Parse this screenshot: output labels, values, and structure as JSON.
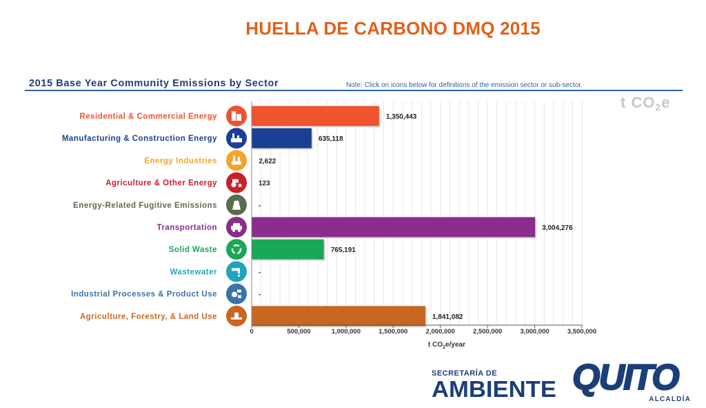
{
  "slide": {
    "title": "HUELLA DE CARBONO DMQ 2015"
  },
  "header": {
    "chart_title": "2015 Base Year Community Emissions by Sector",
    "note": "Note: Click on icons below for definitions of the emission sector or sub-sector.",
    "unit_watermark_main": "t CO",
    "unit_watermark_sub": "2",
    "unit_watermark_tail": "e"
  },
  "x_axis": {
    "label_pre": "t CO",
    "label_sub": "2",
    "label_post": "e/year"
  },
  "chart_data": {
    "type": "bar",
    "orientation": "horizontal",
    "title": "2015 Base Year Community Emissions by Sector",
    "xlabel": "t CO2e/year",
    "xlim": [
      0,
      3500000
    ],
    "xticks": [
      0,
      500000,
      1000000,
      1500000,
      2000000,
      2500000,
      3000000,
      3500000
    ],
    "xtick_labels": [
      "0",
      "500,000",
      "1,000,000",
      "1,500,000",
      "2,000,000",
      "2,500,000",
      "3,000,000",
      "3,500,000"
    ],
    "grid": true,
    "categories": [
      "Residential & Commercial Energy",
      "Manufacturing & Construction Energy",
      "Energy Industries",
      "Agriculture & Other Energy",
      "Energy-Related Fugitive Emissions",
      "Transportation",
      "Solid Waste",
      "Wastewater",
      "Industrial Processes & Product Use",
      "Agriculture, Forestry, & Land Use"
    ],
    "values": [
      1350443,
      635118,
      2622,
      123,
      0,
      3004276,
      765191,
      0,
      0,
      1841082
    ],
    "value_labels": [
      "1,350,443",
      "635,118",
      "2,622",
      "123",
      "-",
      "3,004,276",
      "765,191",
      "-",
      "-",
      "1,841,082"
    ],
    "colors": [
      "#ef5330",
      "#1b3f94",
      "#f4a42a",
      "#c8202a",
      "#5a6b50",
      "#8b2d8d",
      "#1aa757",
      "#1fa3bf",
      "#3a73aa",
      "#c9661f"
    ],
    "icons": [
      "building-icon",
      "factory-icon",
      "power-plant-icon",
      "tractor-icon",
      "cooling-tower-icon",
      "car-icon",
      "recycle-icon",
      "faucet-icon",
      "industry-process-icon",
      "land-use-icon"
    ]
  },
  "logos": {
    "secretaria_top": "SECRETARÍA DE",
    "secretaria_big": "AMBIENTE",
    "quito_word": "QUITO",
    "quito_sub": "ALCALDÍA"
  }
}
